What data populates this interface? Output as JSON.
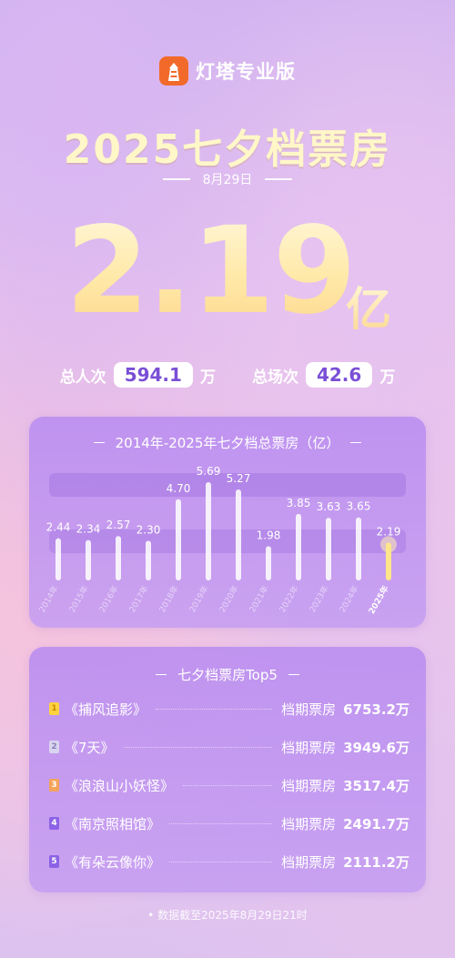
{
  "brand": {
    "name": "灯塔专业版",
    "logo_icon": "lighthouse-icon",
    "logo_color": "#f26a2a"
  },
  "header": {
    "title": "2025七夕档票房",
    "date": "8月29日",
    "box_office_value": "2.19",
    "box_office_unit": "亿"
  },
  "stats": {
    "admissions_label": "总人次",
    "admissions_value": "594.1",
    "admissions_unit": "万",
    "screenings_label": "总场次",
    "screenings_value": "42.6",
    "screenings_unit": "万"
  },
  "chart_data": {
    "type": "bar",
    "title": "2014年-2025年七夕档总票房（亿）",
    "categories": [
      "2014年",
      "2015年",
      "2016年",
      "2017年",
      "2018年",
      "2019年",
      "2020年",
      "2021年",
      "2022年",
      "2023年",
      "2024年",
      "2025年"
    ],
    "values": [
      2.44,
      2.34,
      2.57,
      2.3,
      4.7,
      5.69,
      5.27,
      1.98,
      3.85,
      3.63,
      3.65,
      2.19
    ],
    "labels": [
      "2.44",
      "2.34",
      "2.57",
      "2.30",
      "4.70",
      "5.69",
      "5.27",
      "1.98",
      "3.85",
      "3.63",
      "3.65",
      "2.19"
    ],
    "highlight": "2025年",
    "colors": {
      "bar": "#ffffff",
      "highlight": "#ffe58a"
    }
  },
  "top5": {
    "title": "七夕档票房Top5",
    "value_label": "档期票房",
    "items": [
      {
        "rank": "1",
        "film": "《捕风追影》",
        "value": "6753.2万",
        "badge_color": "#ffd23f"
      },
      {
        "rank": "2",
        "film": "《7天》",
        "value": "3949.6万",
        "badge_color": "#d9d4ef"
      },
      {
        "rank": "3",
        "film": "《浪浪山小妖怪》",
        "value": "3517.4万",
        "badge_color": "#f4a35a"
      },
      {
        "rank": "4",
        "film": "《南京照相馆》",
        "value": "2491.7万",
        "badge_color": "#8c63e6"
      },
      {
        "rank": "5",
        "film": "《有朵云像你》",
        "value": "2111.2万",
        "badge_color": "#8c63e6"
      }
    ]
  },
  "footnote": "• 数据截至2025年8月29日21时"
}
